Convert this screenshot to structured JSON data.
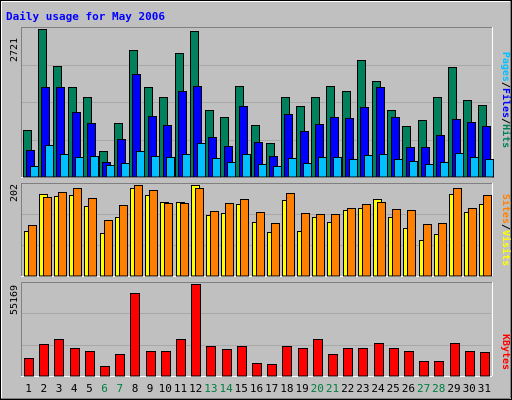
{
  "title": "Daily usage for May 2006",
  "colors": {
    "background": "#C0C0C0",
    "title": "#0000FF",
    "hits": "#00805C",
    "files": "#0000FF",
    "pages": "#00C0FF",
    "visits": "#FFFF00",
    "sites": "#FF8000",
    "kbytes": "#FF0000",
    "weekend_label": "#008040",
    "weekday_label": "#000000",
    "separator": "#FFFFFF",
    "grid": "#808080"
  },
  "chart_data": [
    {
      "type": "bar",
      "panel": "hits-files-pages",
      "y_max_label": "2721",
      "ylim": [
        0,
        2721
      ],
      "categories": [
        "1",
        "2",
        "3",
        "4",
        "5",
        "6",
        "7",
        "8",
        "9",
        "10",
        "11",
        "12",
        "13",
        "14",
        "15",
        "16",
        "17",
        "18",
        "19",
        "20",
        "21",
        "22",
        "23",
        "24",
        "25",
        "26",
        "27",
        "28",
        "29",
        "30",
        "31"
      ],
      "weekend": [
        "6",
        "7",
        "13",
        "14",
        "20",
        "21",
        "27",
        "28"
      ],
      "legend": {
        "pages": "Pages",
        "sep1": "/",
        "files": "Files",
        "sep2": "/",
        "hits": "Hits"
      },
      "series": [
        {
          "name": "Hits",
          "color": "#00805C",
          "values": [
            870,
            2721,
            2040,
            1650,
            1480,
            480,
            1000,
            2340,
            1650,
            1480,
            2280,
            2680,
            1230,
            1110,
            1670,
            960,
            630,
            1480,
            1300,
            1480,
            1670,
            1580,
            2150,
            1760,
            1230,
            930,
            1040,
            1480,
            2030,
            1410,
            1330
          ]
        },
        {
          "name": "Files",
          "color": "#0000FF",
          "values": [
            500,
            1650,
            1650,
            1200,
            1000,
            280,
            690,
            1890,
            1130,
            950,
            1590,
            1670,
            740,
            570,
            1300,
            650,
            390,
            1150,
            850,
            980,
            1100,
            1090,
            1290,
            1650,
            1110,
            560,
            560,
            780,
            1070,
            1020,
            930
          ]
        },
        {
          "name": "Pages",
          "color": "#00C0FF",
          "values": [
            200,
            580,
            430,
            370,
            390,
            220,
            260,
            470,
            390,
            370,
            420,
            630,
            350,
            280,
            430,
            240,
            210,
            350,
            260,
            370,
            370,
            340,
            410,
            430,
            340,
            300,
            240,
            270,
            440,
            370,
            340
          ]
        }
      ]
    },
    {
      "type": "bar",
      "panel": "visits-sites",
      "y_max_label": "202",
      "ylim": [
        0,
        202
      ],
      "categories": [
        "1",
        "2",
        "3",
        "4",
        "5",
        "6",
        "7",
        "8",
        "9",
        "10",
        "11",
        "12",
        "13",
        "14",
        "15",
        "16",
        "17",
        "18",
        "19",
        "20",
        "21",
        "22",
        "23",
        "24",
        "25",
        "26",
        "27",
        "28",
        "29",
        "30",
        "31"
      ],
      "legend": {
        "sites": "Sites",
        "sep1": "/",
        "visits": "Visits"
      },
      "series": [
        {
          "name": "Visits",
          "color": "#FFFF00",
          "values": [
            100,
            183,
            178,
            180,
            155,
            95,
            130,
            195,
            180,
            165,
            165,
            202,
            135,
            140,
            160,
            120,
            98,
            168,
            100,
            130,
            120,
            147,
            150,
            172,
            130,
            107,
            80,
            93,
            182,
            141,
            160
          ]
        },
        {
          "name": "Sites",
          "color": "#FF8000",
          "values": [
            113,
            175,
            187,
            195,
            173,
            125,
            158,
            202,
            190,
            162,
            162,
            195,
            145,
            163,
            170,
            143,
            117,
            185,
            140,
            137,
            137,
            150,
            160,
            165,
            148,
            147,
            115,
            118,
            195,
            150,
            180
          ]
        }
      ]
    },
    {
      "type": "bar",
      "panel": "kbytes",
      "y_max_label": "55169",
      "ylim": [
        0,
        55169
      ],
      "categories": [
        "1",
        "2",
        "3",
        "4",
        "5",
        "6",
        "7",
        "8",
        "9",
        "10",
        "11",
        "12",
        "13",
        "14",
        "15",
        "16",
        "17",
        "18",
        "19",
        "20",
        "21",
        "22",
        "23",
        "24",
        "25",
        "26",
        "27",
        "28",
        "29",
        "30",
        "31"
      ],
      "legend": {
        "kbytes": "KBytes"
      },
      "series": [
        {
          "name": "KBytes",
          "color": "#FF0000",
          "values": [
            11000,
            19000,
            22000,
            17000,
            15000,
            6000,
            13000,
            50000,
            15000,
            15000,
            22000,
            55169,
            18000,
            16000,
            18000,
            8000,
            7000,
            18000,
            17000,
            22000,
            13000,
            17000,
            17000,
            20000,
            17000,
            15000,
            9000,
            9000,
            20000,
            15000,
            14500
          ]
        }
      ]
    }
  ]
}
